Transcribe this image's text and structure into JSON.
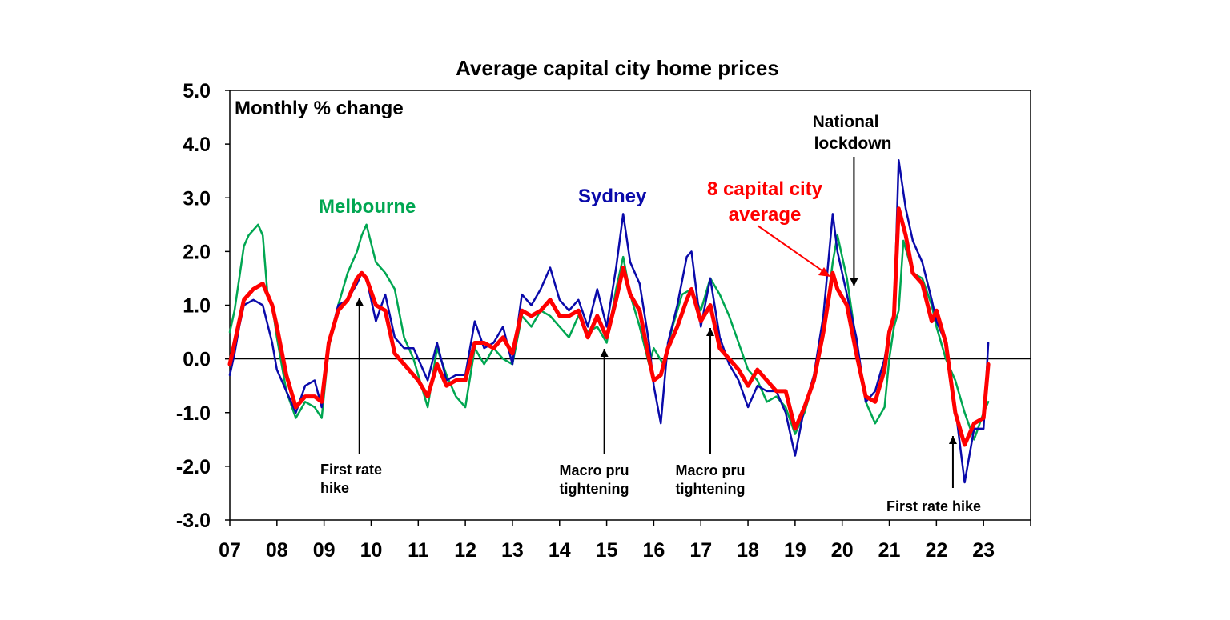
{
  "chart_data": {
    "type": "line",
    "title": "Average capital city home prices",
    "ylabel": "Monthly % change",
    "xlabel": "",
    "ylim": [
      -3.0,
      5.0
    ],
    "xlim": [
      2007.0,
      2024.0
    ],
    "y_ticks": [
      "5.0",
      "4.0",
      "3.0",
      "2.0",
      "1.0",
      "0.0",
      "-1.0",
      "-2.0",
      "-3.0"
    ],
    "x_ticks": [
      "07",
      "08",
      "09",
      "10",
      "11",
      "12",
      "13",
      "14",
      "15",
      "16",
      "17",
      "18",
      "19",
      "20",
      "21",
      "22",
      "23"
    ],
    "grid": false,
    "series": [
      {
        "name": "Melbourne",
        "color": "#00a651",
        "x": [
          2007.0,
          2007.1,
          2007.2,
          2007.3,
          2007.4,
          2007.5,
          2007.6,
          2007.7,
          2007.8,
          2007.9,
          2008.0,
          2008.2,
          2008.4,
          2008.6,
          2008.8,
          2008.95,
          2009.1,
          2009.3,
          2009.5,
          2009.7,
          2009.8,
          2009.9,
          2010.1,
          2010.3,
          2010.5,
          2010.7,
          2010.9,
          2011.0,
          2011.2,
          2011.4,
          2011.6,
          2011.8,
          2012.0,
          2012.2,
          2012.4,
          2012.6,
          2012.8,
          2013.0,
          2013.2,
          2013.4,
          2013.6,
          2013.8,
          2014.0,
          2014.2,
          2014.4,
          2014.6,
          2014.8,
          2015.0,
          2015.2,
          2015.35,
          2015.5,
          2015.7,
          2015.9,
          2016.0,
          2016.2,
          2016.4,
          2016.6,
          2016.8,
          2017.0,
          2017.2,
          2017.4,
          2017.6,
          2017.8,
          2018.0,
          2018.2,
          2018.4,
          2018.6,
          2018.8,
          2019.0,
          2019.2,
          2019.4,
          2019.6,
          2019.8,
          2019.9,
          2020.1,
          2020.3,
          2020.5,
          2020.7,
          2020.9,
          2021.0,
          2021.1,
          2021.2,
          2021.3,
          2021.5,
          2021.7,
          2021.9,
          2022.0,
          2022.2,
          2022.4,
          2022.6,
          2022.8,
          2023.0,
          2023.1
        ],
        "y": [
          0.5,
          0.9,
          1.5,
          2.1,
          2.3,
          2.4,
          2.5,
          2.3,
          1.2,
          1.0,
          0.4,
          -0.6,
          -1.1,
          -0.8,
          -0.9,
          -1.1,
          0.2,
          1.0,
          1.6,
          2.0,
          2.3,
          2.5,
          1.8,
          1.6,
          1.3,
          0.4,
          0.0,
          -0.3,
          -0.9,
          0.2,
          -0.3,
          -0.7,
          -0.9,
          0.2,
          -0.1,
          0.2,
          0.0,
          -0.1,
          0.8,
          0.6,
          0.9,
          0.8,
          0.6,
          0.4,
          0.8,
          0.5,
          0.6,
          0.3,
          1.3,
          1.9,
          1.2,
          0.6,
          -0.1,
          0.2,
          -0.1,
          0.6,
          1.2,
          1.3,
          0.9,
          1.5,
          1.2,
          0.8,
          0.3,
          -0.2,
          -0.4,
          -0.8,
          -0.7,
          -0.9,
          -1.4,
          -1.0,
          -0.4,
          0.4,
          1.8,
          2.3,
          1.5,
          0.3,
          -0.8,
          -1.2,
          -0.9,
          0.0,
          0.6,
          0.9,
          2.2,
          1.6,
          1.5,
          1.0,
          0.6,
          0.0,
          -0.4,
          -1.0,
          -1.5,
          -1.0,
          -0.8
        ]
      },
      {
        "name": "Sydney",
        "color": "#0a0aaa",
        "x": [
          2007.0,
          2007.1,
          2007.2,
          2007.3,
          2007.5,
          2007.7,
          2007.9,
          2008.0,
          2008.2,
          2008.4,
          2008.6,
          2008.8,
          2008.95,
          2009.1,
          2009.3,
          2009.5,
          2009.7,
          2009.8,
          2009.9,
          2010.1,
          2010.3,
          2010.5,
          2010.7,
          2010.9,
          2011.0,
          2011.2,
          2011.4,
          2011.6,
          2011.8,
          2012.0,
          2012.2,
          2012.4,
          2012.6,
          2012.8,
          2013.0,
          2013.2,
          2013.4,
          2013.6,
          2013.8,
          2014.0,
          2014.2,
          2014.4,
          2014.6,
          2014.8,
          2015.0,
          2015.2,
          2015.35,
          2015.5,
          2015.7,
          2015.9,
          2016.0,
          2016.15,
          2016.3,
          2016.5,
          2016.7,
          2016.8,
          2017.0,
          2017.2,
          2017.4,
          2017.6,
          2017.8,
          2018.0,
          2018.2,
          2018.4,
          2018.6,
          2018.8,
          2019.0,
          2019.2,
          2019.4,
          2019.6,
          2019.8,
          2019.9,
          2020.1,
          2020.3,
          2020.5,
          2020.7,
          2020.9,
          2021.0,
          2021.1,
          2021.2,
          2021.35,
          2021.5,
          2021.7,
          2021.9,
          2022.0,
          2022.2,
          2022.4,
          2022.6,
          2022.8,
          2023.0,
          2023.1
        ],
        "y": [
          -0.3,
          0.1,
          0.6,
          1.0,
          1.1,
          1.0,
          0.3,
          -0.2,
          -0.6,
          -1.0,
          -0.5,
          -0.4,
          -0.9,
          0.3,
          1.0,
          1.1,
          1.4,
          1.6,
          1.5,
          0.7,
          1.2,
          0.4,
          0.2,
          0.2,
          0.0,
          -0.4,
          0.3,
          -0.4,
          -0.3,
          -0.3,
          0.7,
          0.2,
          0.3,
          0.6,
          -0.1,
          1.2,
          1.0,
          1.3,
          1.7,
          1.1,
          0.9,
          1.1,
          0.6,
          1.3,
          0.6,
          1.7,
          2.7,
          1.8,
          1.4,
          0.3,
          -0.5,
          -1.2,
          0.3,
          1.0,
          1.9,
          2.0,
          0.6,
          1.5,
          0.4,
          -0.1,
          -0.4,
          -0.9,
          -0.5,
          -0.6,
          -0.6,
          -1.0,
          -1.8,
          -0.9,
          -0.3,
          0.8,
          2.7,
          2.0,
          1.2,
          0.4,
          -0.8,
          -0.6,
          0.0,
          0.5,
          0.8,
          3.7,
          2.8,
          2.2,
          1.8,
          1.1,
          0.7,
          0.3,
          -0.9,
          -2.3,
          -1.3,
          -1.3,
          0.3
        ]
      },
      {
        "name": "8 capital city average",
        "color": "#ff0000",
        "x": [
          2007.0,
          2007.1,
          2007.2,
          2007.3,
          2007.5,
          2007.7,
          2007.9,
          2008.0,
          2008.2,
          2008.4,
          2008.6,
          2008.8,
          2008.95,
          2009.1,
          2009.3,
          2009.5,
          2009.7,
          2009.8,
          2009.9,
          2010.1,
          2010.3,
          2010.5,
          2010.7,
          2010.9,
          2011.0,
          2011.2,
          2011.4,
          2011.6,
          2011.8,
          2012.0,
          2012.2,
          2012.4,
          2012.6,
          2012.8,
          2013.0,
          2013.2,
          2013.4,
          2013.6,
          2013.8,
          2014.0,
          2014.2,
          2014.4,
          2014.6,
          2014.8,
          2015.0,
          2015.2,
          2015.35,
          2015.5,
          2015.7,
          2015.9,
          2016.0,
          2016.15,
          2016.3,
          2016.5,
          2016.7,
          2016.8,
          2017.0,
          2017.2,
          2017.4,
          2017.6,
          2017.8,
          2018.0,
          2018.2,
          2018.4,
          2018.6,
          2018.8,
          2019.0,
          2019.2,
          2019.4,
          2019.6,
          2019.8,
          2019.9,
          2020.1,
          2020.3,
          2020.5,
          2020.7,
          2020.9,
          2021.0,
          2021.1,
          2021.2,
          2021.35,
          2021.5,
          2021.7,
          2021.9,
          2022.0,
          2022.2,
          2022.4,
          2022.6,
          2022.8,
          2023.0,
          2023.1
        ],
        "y": [
          -0.1,
          0.3,
          0.7,
          1.1,
          1.3,
          1.4,
          1.0,
          0.6,
          -0.3,
          -0.9,
          -0.7,
          -0.7,
          -0.8,
          0.3,
          0.9,
          1.1,
          1.5,
          1.6,
          1.5,
          1.0,
          0.9,
          0.1,
          -0.1,
          -0.3,
          -0.4,
          -0.7,
          -0.1,
          -0.5,
          -0.4,
          -0.4,
          0.3,
          0.3,
          0.2,
          0.4,
          0.1,
          0.9,
          0.8,
          0.9,
          1.1,
          0.8,
          0.8,
          0.9,
          0.4,
          0.8,
          0.4,
          1.1,
          1.7,
          1.2,
          0.9,
          0.0,
          -0.4,
          -0.3,
          0.2,
          0.6,
          1.1,
          1.3,
          0.7,
          1.0,
          0.2,
          0.0,
          -0.2,
          -0.5,
          -0.2,
          -0.4,
          -0.6,
          -0.6,
          -1.3,
          -0.9,
          -0.4,
          0.5,
          1.6,
          1.3,
          1.0,
          0.1,
          -0.7,
          -0.8,
          -0.2,
          0.5,
          0.8,
          2.8,
          2.3,
          1.6,
          1.4,
          0.7,
          0.9,
          0.3,
          -1.0,
          -1.6,
          -1.2,
          -1.1,
          -0.1
        ]
      }
    ],
    "annotations": [
      {
        "lines": [
          "First rate",
          "hike"
        ],
        "x": 2009.75
      },
      {
        "lines": [
          "Macro pru",
          "tightening"
        ],
        "x": 2014.95
      },
      {
        "lines": [
          "Macro pru",
          "tightening"
        ],
        "x": 2017.2
      },
      {
        "lines": [
          "National",
          "lockdown"
        ],
        "x": 2020.25
      },
      {
        "lines": [
          "First rate hike"
        ],
        "x": 2022.35
      }
    ],
    "series_labels": {
      "melbourne": "Melbourne",
      "sydney": "Sydney",
      "average_line1": "8 capital city",
      "average_line2": "average"
    }
  }
}
